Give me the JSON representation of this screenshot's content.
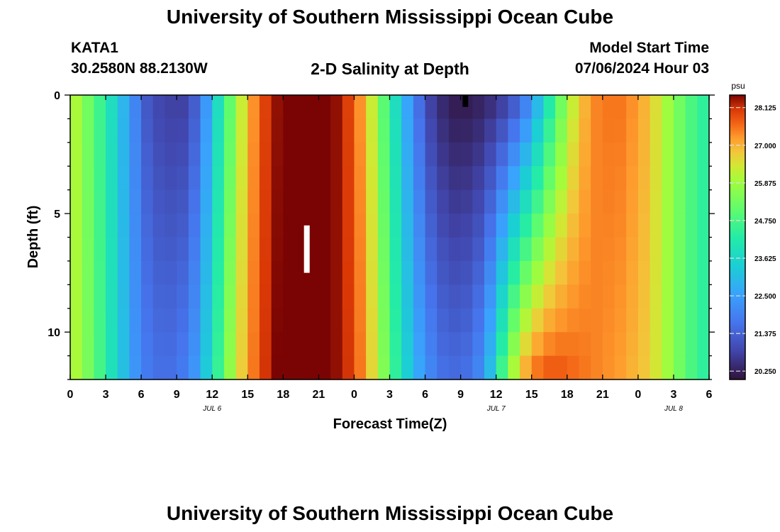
{
  "header": {
    "title": "University of Southern Mississippi Ocean Cube",
    "station": "KATA1",
    "coords": "30.2580N  88.2130W",
    "subtitle": "2-D Salinity at Depth",
    "model_start_label": "Model Start Time",
    "model_start_value": "07/06/2024 Hour 03"
  },
  "footer": {
    "title": "University of Southern Mississippi Ocean Cube"
  },
  "chart_data": {
    "type": "heatmap",
    "title": "2-D Salinity at Depth",
    "xlabel": "Forecast Time(Z)",
    "ylabel": "Depth (ft)",
    "x_tick_labels": [
      "0",
      "3",
      "6",
      "9",
      "12",
      "15",
      "18",
      "21",
      "0",
      "3",
      "6",
      "9",
      "12",
      "15",
      "18",
      "21",
      "0",
      "3",
      "6"
    ],
    "date_labels": [
      {
        "label": "JUL 6",
        "hour": 12
      },
      {
        "label": "JUL 7",
        "hour": 36
      },
      {
        "label": "JUL 8",
        "hour": 51
      }
    ],
    "x_range_hours": [
      0,
      54
    ],
    "y_ticks": [
      0,
      5,
      10
    ],
    "ylim": [
      0,
      12
    ],
    "y_inverted": true,
    "colorbar": {
      "unit": "psu",
      "ticks": [
        "28.125",
        "27.000",
        "25.875",
        "24.750",
        "23.625",
        "22.500",
        "21.375",
        "20.250"
      ],
      "range": [
        20.0,
        28.5
      ]
    },
    "time_columns": 54,
    "depth_rows": 12,
    "surface_salinity_by_hour": [
      26.0,
      25.3,
      24.6,
      23.8,
      22.9,
      22.0,
      21.2,
      20.9,
      20.8,
      20.8,
      21.3,
      22.4,
      23.8,
      25.1,
      26.3,
      27.3,
      28.0,
      28.4,
      28.6,
      28.7,
      28.7,
      28.6,
      28.4,
      28.0,
      27.3,
      26.3,
      25.0,
      23.8,
      22.6,
      21.6,
      20.8,
      20.4,
      20.2,
      20.2,
      20.3,
      20.5,
      20.8,
      21.3,
      22.0,
      23.0,
      24.2,
      25.3,
      26.3,
      27.0,
      27.4,
      27.5,
      27.5,
      27.3,
      27.0,
      26.5,
      25.9,
      25.3,
      24.8,
      24.4
    ],
    "bottom_salinity_by_hour": [
      26.0,
      25.4,
      24.7,
      23.9,
      23.1,
      22.3,
      21.8,
      21.6,
      21.6,
      21.8,
      22.3,
      23.3,
      24.5,
      25.7,
      26.7,
      27.5,
      28.1,
      28.5,
      28.6,
      28.7,
      28.7,
      28.6,
      28.4,
      28.1,
      27.5,
      26.6,
      25.5,
      24.4,
      23.4,
      22.6,
      22.0,
      21.6,
      21.5,
      21.6,
      22.0,
      23.0,
      24.6,
      26.0,
      27.0,
      27.5,
      27.7,
      27.7,
      27.6,
      27.5,
      27.4,
      27.3,
      27.2,
      27.0,
      26.8,
      26.4,
      25.9,
      25.3,
      24.8,
      24.4
    ],
    "missing_markers": [
      {
        "hour": 20,
        "depth_from": 5.5,
        "depth_to": 7.5,
        "color": "#ffffff"
      },
      {
        "hour": 33.4,
        "depth_from": 0,
        "depth_to": 0.5,
        "color": "#000000"
      }
    ]
  }
}
